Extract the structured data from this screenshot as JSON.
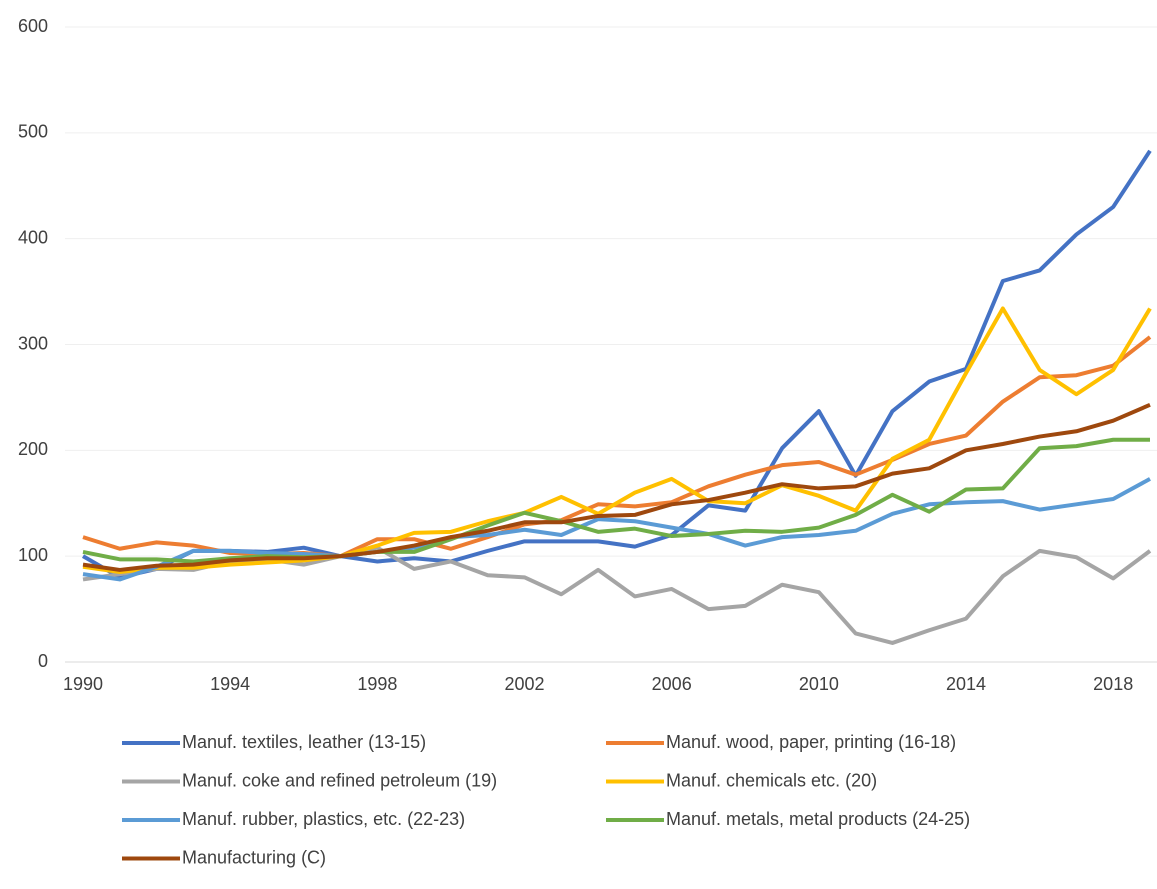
{
  "chart_data": {
    "type": "line",
    "x": [
      1990,
      1991,
      1992,
      1993,
      1994,
      1995,
      1996,
      1997,
      1998,
      1999,
      2000,
      2001,
      2002,
      2003,
      2004,
      2005,
      2006,
      2007,
      2008,
      2009,
      2010,
      2011,
      2012,
      2013,
      2014,
      2015,
      2016,
      2017,
      2018,
      2019
    ],
    "xlim": [
      1990,
      2019
    ],
    "xticks": [
      1990,
      1994,
      1998,
      2002,
      2006,
      2010,
      2014,
      2018
    ],
    "ylim": [
      0,
      600
    ],
    "yticks": [
      0,
      100,
      200,
      300,
      400,
      500,
      600
    ],
    "grid": true,
    "series": [
      {
        "name": "Manuf. textiles, leather (13-15)",
        "color": "#4472c4",
        "values": [
          100,
          80,
          88,
          105,
          105,
          104,
          108,
          100,
          95,
          98,
          95,
          105,
          114,
          114,
          114,
          109,
          120,
          148,
          143,
          202,
          237,
          176,
          237,
          265,
          277,
          360,
          370,
          404,
          430,
          483
        ]
      },
      {
        "name": "Manuf. wood, paper, printing (16-18)",
        "color": "#ed7d31",
        "values": [
          118,
          107,
          113,
          110,
          103,
          102,
          103,
          100,
          116,
          116,
          107,
          118,
          130,
          134,
          149,
          147,
          151,
          166,
          177,
          186,
          189,
          177,
          191,
          206,
          214,
          246,
          269,
          271,
          280,
          307
        ]
      },
      {
        "name": "Manuf. coke and refined petroleum (19)",
        "color": "#a5a5a5",
        "values": [
          78,
          83,
          88,
          87,
          95,
          97,
          92,
          100,
          108,
          88,
          95,
          82,
          80,
          64,
          87,
          62,
          69,
          50,
          53,
          73,
          66,
          27,
          18,
          30,
          41,
          81,
          105,
          99,
          79,
          105
        ]
      },
      {
        "name": "Manuf. chemicals etc. (20)",
        "color": "#ffc000",
        "values": [
          90,
          85,
          89,
          89,
          92,
          94,
          96,
          100,
          110,
          122,
          123,
          133,
          141,
          156,
          140,
          160,
          173,
          152,
          150,
          167,
          157,
          143,
          192,
          210,
          273,
          334,
          276,
          253,
          276,
          334
        ]
      },
      {
        "name": "Manuf. rubber, plastics, etc. (22-23)",
        "color": "#5b9bd5",
        "values": [
          83,
          78,
          90,
          105,
          105,
          103,
          102,
          100,
          104,
          108,
          118,
          120,
          125,
          120,
          135,
          133,
          127,
          121,
          110,
          118,
          120,
          124,
          140,
          149,
          151,
          152,
          144,
          149,
          154,
          173
        ]
      },
      {
        "name": "Manuf. metals, metal products (24-25)",
        "color": "#70ad47",
        "values": [
          104,
          97,
          97,
          95,
          98,
          100,
          99,
          100,
          104,
          104,
          116,
          129,
          141,
          133,
          123,
          126,
          119,
          121,
          124,
          123,
          127,
          139,
          158,
          142,
          163,
          164,
          202,
          204,
          210,
          210
        ]
      },
      {
        "name": "Manufacturing (C)",
        "color": "#9e480e",
        "values": [
          92,
          87,
          91,
          92,
          96,
          98,
          98,
          100,
          104,
          110,
          118,
          124,
          132,
          132,
          138,
          139,
          149,
          153,
          160,
          168,
          164,
          166,
          178,
          183,
          200,
          206,
          213,
          218,
          228,
          243
        ]
      }
    ]
  }
}
